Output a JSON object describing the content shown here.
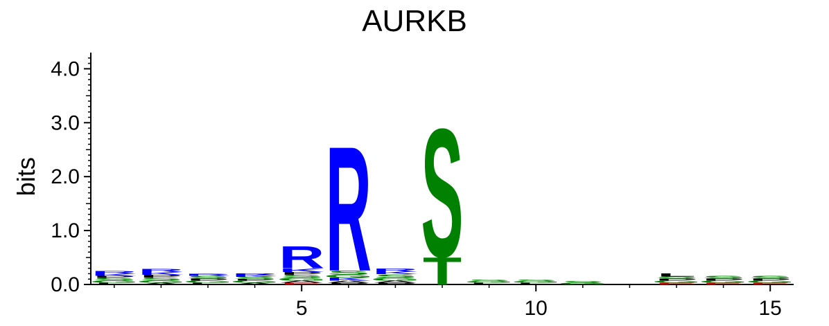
{
  "chart_data": {
    "type": "sequence-logo",
    "title": "AURKB",
    "ylabel": "bits",
    "xlabel": "",
    "ylim": [
      0,
      4.3
    ],
    "xlim": [
      0.5,
      15.5
    ],
    "yticks": [
      0.0,
      1.0,
      2.0,
      3.0,
      4.0
    ],
    "ytick_labels": [
      "0.0",
      "1.0",
      "2.0",
      "3.0",
      "4.0"
    ],
    "xticks": [
      5,
      10,
      15
    ],
    "xtick_labels": [
      "5",
      "10",
      "15"
    ],
    "colors": {
      "R": "#0000ff",
      "K": "#0000ff",
      "H": "#0000ff",
      "S": "#008000",
      "T": "#008000",
      "G": "#008000",
      "Y": "#008000",
      "C": "#008000",
      "N": "#008000",
      "Q": "#008000",
      "D": "#cc0000",
      "E": "#cc0000",
      "A": "#000000",
      "V": "#000000",
      "L": "#000000",
      "I": "#000000",
      "P": "#000000",
      "F": "#000000",
      "M": "#000000",
      "W": "#000000"
    },
    "positions": [
      {
        "pos": 1,
        "letters": [
          [
            "L",
            0.03
          ],
          [
            "G",
            0.04
          ],
          [
            "S",
            0.05
          ],
          [
            "P",
            0.04
          ],
          [
            "K",
            0.04
          ],
          [
            "R",
            0.05
          ]
        ]
      },
      {
        "pos": 2,
        "letters": [
          [
            "A",
            0.03
          ],
          [
            "G",
            0.04
          ],
          [
            "S",
            0.06
          ],
          [
            "P",
            0.05
          ],
          [
            "K",
            0.05
          ],
          [
            "R",
            0.06
          ]
        ]
      },
      {
        "pos": 3,
        "letters": [
          [
            "L",
            0.03
          ],
          [
            "G",
            0.04
          ],
          [
            "P",
            0.04
          ],
          [
            "S",
            0.05
          ],
          [
            "R",
            0.04
          ]
        ]
      },
      {
        "pos": 4,
        "letters": [
          [
            "A",
            0.03
          ],
          [
            "G",
            0.04
          ],
          [
            "P",
            0.03
          ],
          [
            "S",
            0.04
          ],
          [
            "K",
            0.03
          ],
          [
            "R",
            0.04
          ]
        ]
      },
      {
        "pos": 5,
        "letters": [
          [
            "E",
            0.03
          ],
          [
            "A",
            0.04
          ],
          [
            "G",
            0.05
          ],
          [
            "S",
            0.06
          ],
          [
            "P",
            0.05
          ],
          [
            "K",
            0.07
          ],
          [
            "R",
            0.42
          ]
        ]
      },
      {
        "pos": 6,
        "letters": [
          [
            "P",
            0.03
          ],
          [
            "A",
            0.04
          ],
          [
            "K",
            0.06
          ],
          [
            "G",
            0.05
          ],
          [
            "S",
            0.08
          ],
          [
            "R",
            2.38
          ]
        ]
      },
      {
        "pos": 7,
        "letters": [
          [
            "P",
            0.03
          ],
          [
            "A",
            0.04
          ],
          [
            "G",
            0.05
          ],
          [
            "S",
            0.07
          ],
          [
            "K",
            0.05
          ],
          [
            "R",
            0.06
          ]
        ]
      },
      {
        "pos": 8,
        "letters": [
          [
            "T",
            0.52
          ],
          [
            "S",
            2.45
          ]
        ]
      },
      {
        "pos": 9,
        "letters": [
          [
            "L",
            0.03
          ],
          [
            "G",
            0.03
          ],
          [
            "S",
            0.03
          ]
        ]
      },
      {
        "pos": 10,
        "letters": [
          [
            "L",
            0.03
          ],
          [
            "G",
            0.03
          ],
          [
            "S",
            0.03
          ]
        ]
      },
      {
        "pos": 11,
        "letters": [
          [
            "G",
            0.03
          ],
          [
            "S",
            0.03
          ]
        ]
      },
      {
        "pos": 12,
        "letters": []
      },
      {
        "pos": 13,
        "letters": [
          [
            "E",
            0.03
          ],
          [
            "G",
            0.04
          ],
          [
            "P",
            0.04
          ],
          [
            "S",
            0.04
          ],
          [
            "L",
            0.06
          ]
        ]
      },
      {
        "pos": 14,
        "letters": [
          [
            "E",
            0.03
          ],
          [
            "G",
            0.04
          ],
          [
            "P",
            0.04
          ],
          [
            "S",
            0.05
          ]
        ]
      },
      {
        "pos": 15,
        "letters": [
          [
            "E",
            0.03
          ],
          [
            "G",
            0.04
          ],
          [
            "P",
            0.04
          ],
          [
            "S",
            0.05
          ]
        ]
      }
    ]
  }
}
